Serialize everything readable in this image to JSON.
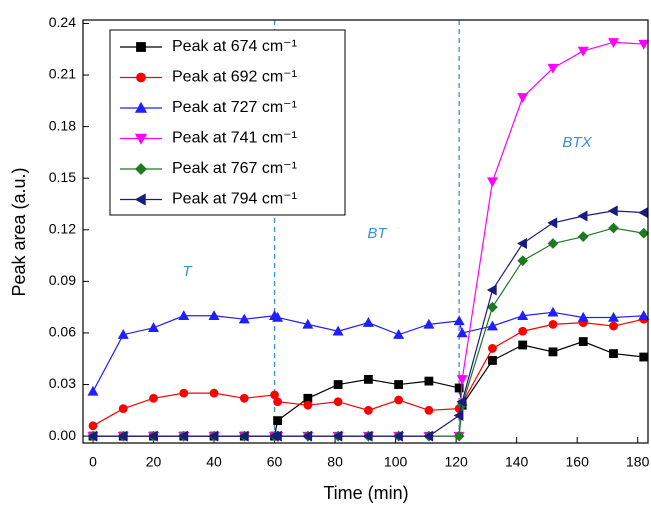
{
  "chart_data": {
    "type": "line",
    "x_label": "Time (min)",
    "y_label": "Peak area (a.u.)",
    "x": [
      0,
      10,
      20,
      30,
      40,
      50,
      60,
      61,
      71,
      81,
      91,
      101,
      111,
      121,
      122,
      132,
      142,
      152,
      162,
      172,
      182
    ],
    "series": [
      {
        "name": "Peak at 674 cm⁻¹",
        "color": "#000000",
        "marker": "square",
        "values": [
          0,
          0,
          0,
          0,
          0,
          0,
          0,
          0.009,
          0.022,
          0.03,
          0.033,
          0.03,
          0.032,
          0.028,
          0.018,
          0.044,
          0.053,
          0.049,
          0.055,
          0.048,
          0.046
        ]
      },
      {
        "name": "Peak at 692 cm⁻¹",
        "color": "#ff0000",
        "marker": "circle",
        "values": [
          0.006,
          0.016,
          0.022,
          0.025,
          0.025,
          0.022,
          0.024,
          0.02,
          0.018,
          0.02,
          0.015,
          0.021,
          0.015,
          0.016,
          0.019,
          0.051,
          0.061,
          0.065,
          0.066,
          0.064,
          0.068
        ]
      },
      {
        "name": "Peak at 727 cm⁻¹",
        "color": "#1f1fff",
        "marker": "triangle-up",
        "values": [
          0.026,
          0.059,
          0.063,
          0.07,
          0.07,
          0.068,
          0.07,
          0.069,
          0.065,
          0.061,
          0.066,
          0.059,
          0.065,
          0.067,
          0.06,
          0.064,
          0.07,
          0.072,
          0.069,
          0.069,
          0.07
        ]
      },
      {
        "name": "Peak at 741 cm⁻¹",
        "color": "#ff00ff",
        "marker": "triangle-down",
        "values": [
          0,
          0,
          0,
          0,
          0,
          0,
          0,
          0,
          0,
          0,
          0,
          0,
          0,
          0,
          0.033,
          0.148,
          0.197,
          0.214,
          0.224,
          0.229,
          0.228
        ]
      },
      {
        "name": "Peak at 767 cm⁻¹",
        "color": "#1e7a1e",
        "marker": "diamond",
        "values": [
          0,
          0,
          0,
          0,
          0,
          0,
          0,
          0,
          0,
          0,
          0,
          0,
          0,
          0,
          0.018,
          0.075,
          0.102,
          0.112,
          0.116,
          0.121,
          0.118
        ]
      },
      {
        "name": "Peak at 794 cm⁻¹",
        "color": "#1a1a80",
        "marker": "triangle-left",
        "values": [
          0,
          0,
          0,
          0,
          0,
          0,
          0,
          0,
          0,
          0,
          0,
          0,
          0,
          0.012,
          0.02,
          0.085,
          0.112,
          0.124,
          0.128,
          0.131,
          0.13
        ]
      }
    ],
    "xlim": [
      -3.3,
      183.4
    ],
    "ylim": [
      -0.004,
      0.242
    ],
    "xticks": [
      0,
      20,
      40,
      60,
      80,
      100,
      120,
      140,
      160,
      180
    ],
    "yticks": [
      {
        "value": 0,
        "label": "0.00"
      },
      {
        "value": 0.03,
        "label": "0.03"
      },
      {
        "value": 0.06,
        "label": "0.06"
      },
      {
        "value": 0.09,
        "label": "0.09"
      },
      {
        "value": 0.12,
        "label": "0.12"
      },
      {
        "value": 0.15,
        "label": "0.15"
      },
      {
        "value": 0.18,
        "label": "0.18"
      },
      {
        "value": 0.21,
        "label": "0.21"
      },
      {
        "value": 0.24,
        "label": "0.24"
      }
    ],
    "phase_lines": [
      60,
      121
    ],
    "annotations": [
      "T",
      "BT",
      "BTX"
    ],
    "legend": "upper left",
    "grid": false
  }
}
